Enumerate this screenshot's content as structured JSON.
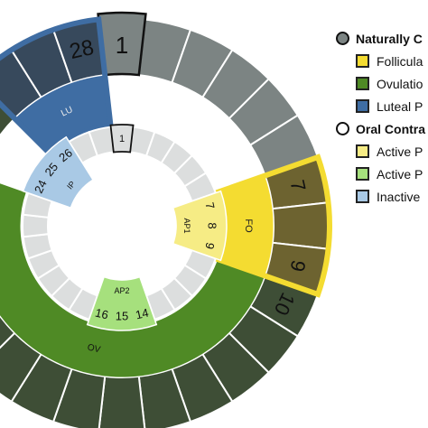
{
  "colors": {
    "grey_segment": "#7c8483",
    "grey_stroke": "#ffffff",
    "inner_grey": "#dcdede",
    "follicular": "#f4dc31",
    "follicular_dark": "#6d6330",
    "ovulation": "#4f8a25",
    "ovulation_dark": "#3e4e36",
    "luteal": "#3f6da3",
    "luteal_dark": "#37495c",
    "active_pill": "#f6ec85",
    "active_pill_2": "#a6e07d",
    "inactive": "#a9c9e5"
  },
  "outer_ring": {
    "day_1": "1",
    "day_7": "7",
    "day_9": "9",
    "day_10": "10",
    "day_28": "28"
  },
  "phase_labels": {
    "follicular": "FO",
    "ovulation": "OV",
    "luteal": "LU"
  },
  "inner_ring": {
    "day_1": "1",
    "ap1_days": [
      "7",
      "8",
      "9"
    ],
    "ap1_label": "AP1",
    "ap2_days": [
      "14",
      "15",
      "16"
    ],
    "ap2_label": "AP2",
    "ip_days": [
      "24",
      "25",
      "26"
    ],
    "ip_label": "IP"
  },
  "legend": {
    "natural": "Naturally C",
    "follicular": "Follicula",
    "ovulation": "Ovulatio",
    "luteal": "Luteal P",
    "oral": "Oral Contra",
    "active1": "Active P",
    "active2": "Active P",
    "inactive": "Inactive"
  }
}
